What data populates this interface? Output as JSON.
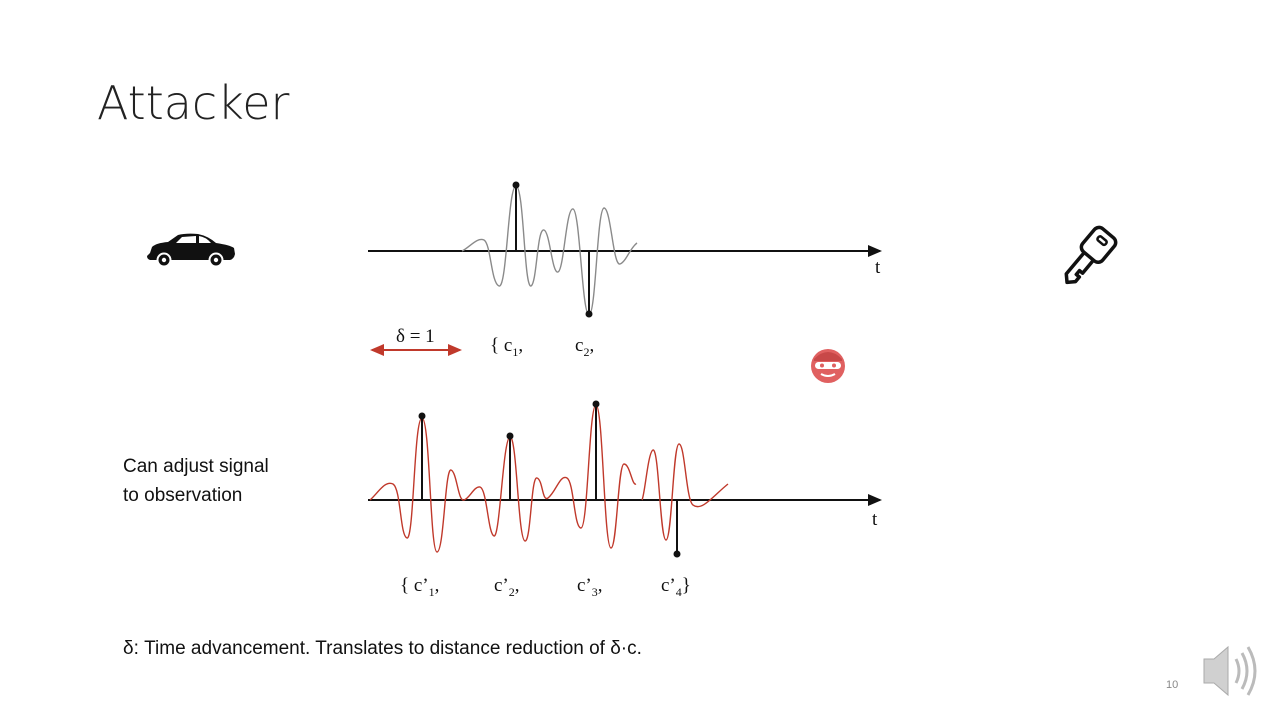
{
  "slide": {
    "title": "Attacker",
    "side_text": [
      "Can adjust signal",
      "to observation"
    ],
    "footnote": "δ: Time advancement. Translates to distance reduction of δ·c.",
    "page_number": "10"
  },
  "top_axis": {
    "axis_label": "t",
    "delta_label": "δ = 1",
    "sequence": [
      {
        "open": "{ c",
        "sub": "1",
        "close": ","
      },
      {
        "open": "c",
        "sub": "2",
        "close": ","
      }
    ]
  },
  "bottom_axis": {
    "axis_label": "t",
    "sequence": [
      {
        "open": "{ c’",
        "sub": "1",
        "close": ","
      },
      {
        "open": "c’",
        "sub": "2",
        "close": ","
      },
      {
        "open": "c’",
        "sub": "3",
        "close": ","
      },
      {
        "open": "c’",
        "sub": "4",
        "close": "}"
      }
    ]
  },
  "icons": {
    "car": "car-icon",
    "key": "key-icon",
    "attacker": "burglar-icon",
    "speaker": "speaker-icon"
  },
  "colors": {
    "top_signal": "#8a8a8a",
    "bottom_signal": "#c0392b",
    "delta_arrow": "#c0392b",
    "attacker": "#e06060"
  }
}
